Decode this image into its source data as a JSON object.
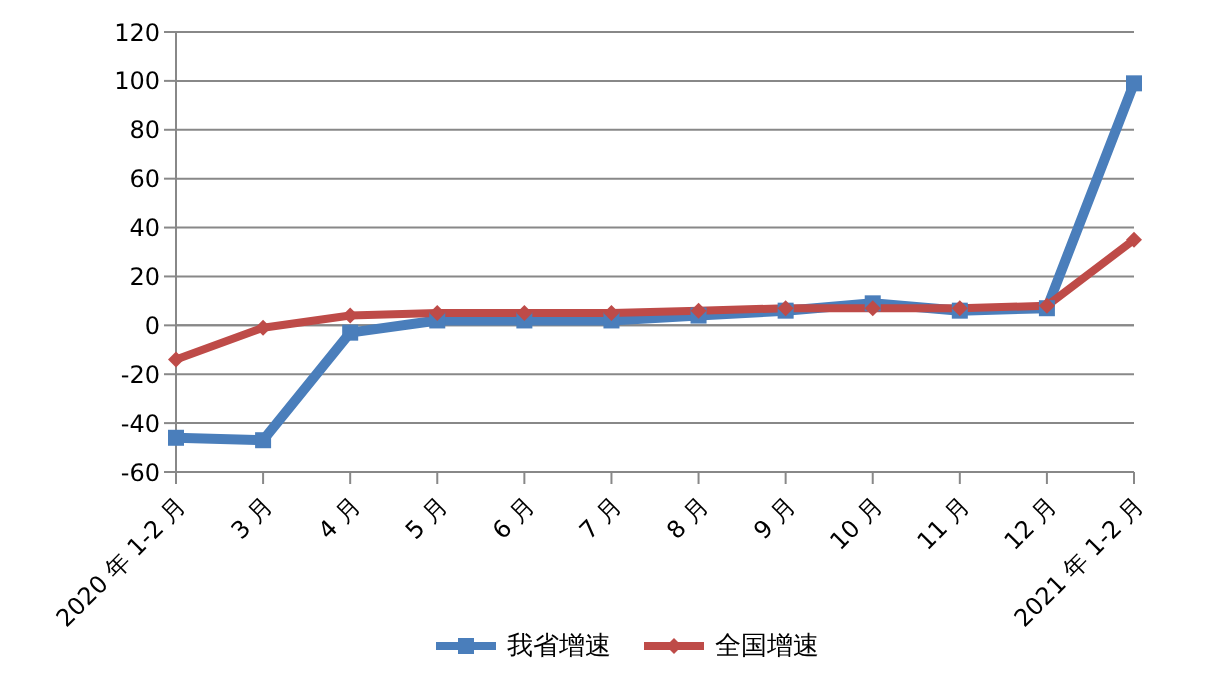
{
  "chart_data": {
    "type": "line",
    "categories": [
      "2020 年 1-2 月",
      "3 月",
      "4 月",
      "5 月",
      "6 月",
      "7 月",
      "8 月",
      "9 月",
      "10 月",
      "11 月",
      "12 月",
      "2021 年 1-2 月"
    ],
    "series": [
      {
        "name": "我省增速",
        "color": "#4a7ebb",
        "marker": "square",
        "values": [
          -46,
          -47,
          -3,
          2,
          2,
          2,
          4,
          6,
          9,
          6,
          7,
          99
        ]
      },
      {
        "name": "全国增速",
        "color": "#be4b48",
        "marker": "diamond",
        "values": [
          -14,
          -1,
          4,
          5,
          5,
          5,
          6,
          7,
          7,
          7,
          8,
          35
        ]
      }
    ],
    "ylim": [
      -60,
      120
    ],
    "yticks": [
      -60,
      -40,
      -20,
      0,
      20,
      40,
      60,
      80,
      100,
      120
    ],
    "grid": "y",
    "legend": "bottom"
  }
}
